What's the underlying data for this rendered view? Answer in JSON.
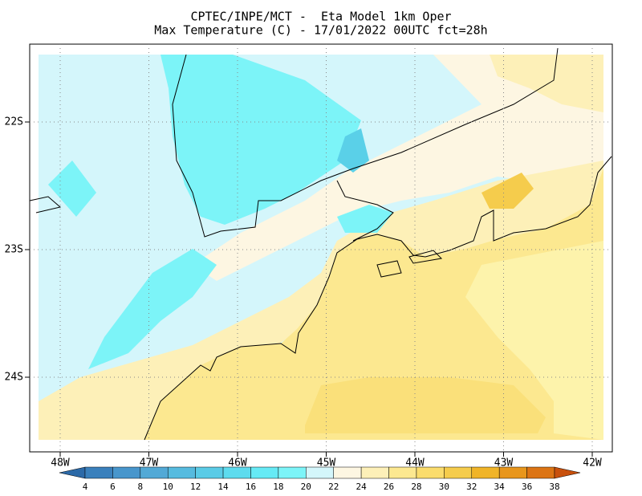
{
  "map": {
    "title": [
      "CPTEC/INPE/MCT -  Eta Model 1km Oper",
      "Max Temperature (C) - 17/01/2022 00UTC fct=28h"
    ],
    "lat_ticks": [
      {
        "value": -22,
        "label": "22S"
      },
      {
        "value": -23,
        "label": "23S"
      },
      {
        "value": -24,
        "label": "24S"
      }
    ],
    "lon_ticks": [
      {
        "value": -48,
        "label": "48W"
      },
      {
        "value": -47,
        "label": "47W"
      },
      {
        "value": -46,
        "label": "46W"
      },
      {
        "value": -45,
        "label": "45W"
      },
      {
        "value": -44,
        "label": "44W"
      },
      {
        "value": -43,
        "label": "43W"
      },
      {
        "value": -42,
        "label": "42W"
      }
    ],
    "colorbar": {
      "levels": [
        4,
        6,
        8,
        10,
        12,
        14,
        16,
        18,
        20,
        22,
        24,
        26,
        28,
        30,
        32,
        34,
        36,
        38
      ],
      "colors": [
        "#2c6aa8",
        "#3a80bc",
        "#4896cc",
        "#52a9d6",
        "#56bbdf",
        "#5acbe6",
        "#5ddbee",
        "#66eaf5",
        "#7cf4f8",
        "#d4f6fb",
        "#fdf6e2",
        "#fdf0b8",
        "#fce890",
        "#fadc6c",
        "#f5cc4c",
        "#f0b428",
        "#e8961c",
        "#dc7414",
        "#c8500c"
      ]
    }
  }
}
